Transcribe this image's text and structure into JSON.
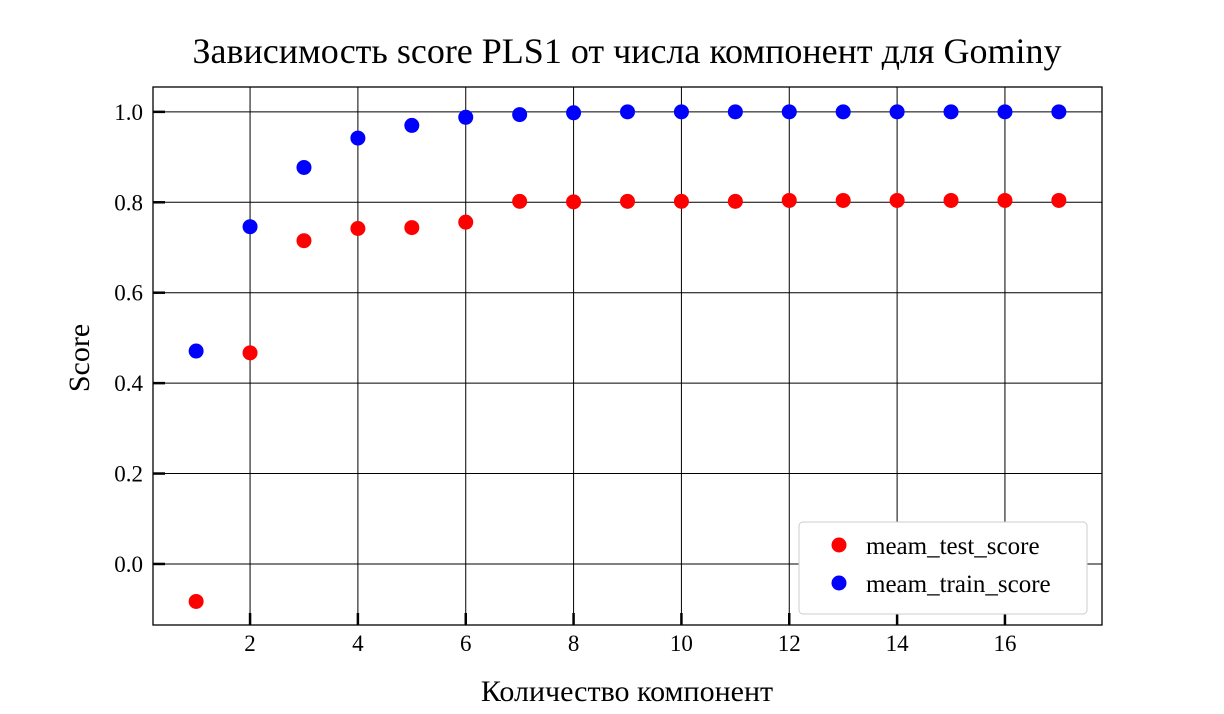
{
  "chart_data": {
    "type": "scatter",
    "title": "Зависимость score PLS1 от числа компонент для Gominy",
    "xlabel": "Количество компонент",
    "ylabel": "Score",
    "xlim": [
      0.2,
      17.8
    ],
    "ylim": [
      -0.135,
      1.055
    ],
    "xticks": [
      2,
      4,
      6,
      8,
      10,
      12,
      14,
      16
    ],
    "xtick_labels": [
      "2",
      "4",
      "6",
      "8",
      "10",
      "12",
      "14",
      "16"
    ],
    "yticks": [
      0.0,
      0.2,
      0.4,
      0.6,
      0.8,
      1.0
    ],
    "ytick_labels": [
      "0.0",
      "0.2",
      "0.4",
      "0.6",
      "0.8",
      "1.0"
    ],
    "grid": true,
    "legend_position": "lower-right",
    "x": [
      1,
      2,
      3,
      4,
      5,
      6,
      7,
      8,
      9,
      10,
      11,
      12,
      13,
      14,
      15,
      16,
      17
    ],
    "series": [
      {
        "name": "meam_test_score",
        "color": "#ff0000",
        "values": [
          -0.083,
          0.467,
          0.715,
          0.742,
          0.744,
          0.756,
          0.802,
          0.801,
          0.802,
          0.802,
          0.802,
          0.804,
          0.804,
          0.804,
          0.804,
          0.804,
          0.804
        ]
      },
      {
        "name": "meam_train_score",
        "color": "#0000ff",
        "values": [
          0.471,
          0.746,
          0.877,
          0.942,
          0.97,
          0.988,
          0.994,
          0.998,
          1.0,
          1.0,
          1.0,
          1.0,
          1.0,
          1.0,
          1.0,
          1.0,
          1.0
        ]
      }
    ]
  }
}
